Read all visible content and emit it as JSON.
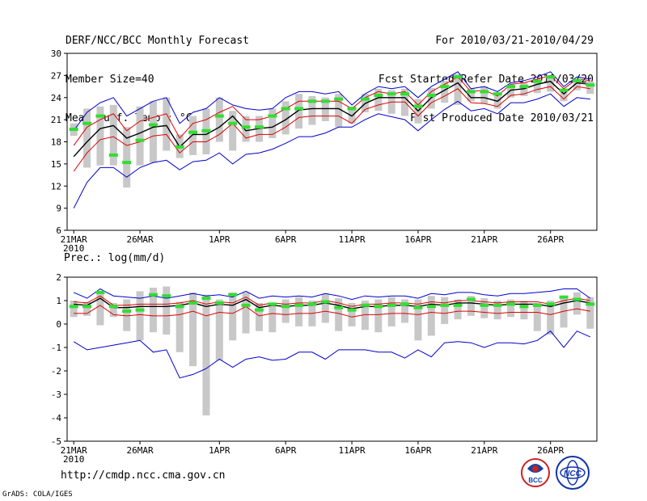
{
  "header": {
    "left": [
      "DERF/NCC/BCC Monthly Forecast",
      "Member Size=40",
      "Mean Surf. Temp.: °C"
    ],
    "right": [
      "For 2010/03/21-2010/04/29",
      "Fcst Started Refer Date 2010/03/20",
      "Fcst Produced Date 2010/03/21"
    ]
  },
  "footer": {
    "url": "http://cmdp.ncc.cma.gov.cn",
    "credit": "GrADS: COLA/IGES",
    "logo_bcc": "BCC",
    "logo_ncc": "NCC"
  },
  "colors": {
    "ensemble_mean": "#000000",
    "std_band": "#e00000",
    "extreme": "#0000cc",
    "analog": "#33dd33",
    "spread_bar": "#c8c8c8"
  },
  "chart_data": [
    {
      "type": "line",
      "title": "Mean Surf. Temp.: °C",
      "x_tick_labels": [
        "21MAR",
        "26MAR",
        "1APR",
        "6APR",
        "11APR",
        "16APR",
        "21APR",
        "26APR"
      ],
      "x_tick_days": [
        1,
        6,
        12,
        17,
        22,
        27,
        32,
        37
      ],
      "x_year_label": "2010",
      "x_range": [
        1,
        40
      ],
      "ylim": [
        6,
        30
      ],
      "y_ticks": [
        6,
        9,
        12,
        15,
        18,
        21,
        24,
        27,
        30
      ],
      "series": [
        {
          "name": "ensemble-mean",
          "values": [
            16,
            18,
            19.8,
            20.2,
            18.5,
            19.2,
            20,
            20.2,
            17.3,
            19,
            19,
            20,
            21.5,
            19.5,
            19.8,
            20,
            21,
            22.3,
            22.5,
            22.5,
            22.5,
            21.5,
            23.2,
            24,
            24,
            24,
            22.2,
            24,
            25,
            26,
            24,
            24,
            23.5,
            25,
            25.2,
            25.8,
            26.2,
            24.5,
            26,
            25.8
          ]
        },
        {
          "name": "mean-plus-std",
          "values": [
            17.5,
            20,
            21,
            21.8,
            19.5,
            20.8,
            21.3,
            21.8,
            18.5,
            20.5,
            21,
            22,
            22.8,
            21,
            21,
            21.5,
            22.5,
            23.5,
            23.5,
            23.5,
            23.5,
            22.5,
            24,
            24.8,
            24.5,
            24.8,
            23,
            24.8,
            25.8,
            26.8,
            24.8,
            25,
            24.2,
            25.8,
            26,
            26.5,
            27,
            25.2,
            26.5,
            26.3
          ]
        },
        {
          "name": "mean-minus-std",
          "values": [
            14,
            16.5,
            18.3,
            18.7,
            17.5,
            18,
            18.8,
            19,
            16.5,
            18,
            18,
            19,
            20.5,
            18.5,
            19,
            19,
            20,
            21.3,
            21.5,
            21.5,
            21.5,
            20.5,
            22.4,
            23,
            23.4,
            23.4,
            21.5,
            23.3,
            24.2,
            25.2,
            23.3,
            23.2,
            22.8,
            24.3,
            24.5,
            25.1,
            25.5,
            23.8,
            25.5,
            25.2
          ]
        },
        {
          "name": "ensemble-max",
          "values": [
            19.5,
            22,
            23.3,
            24,
            21.5,
            22.5,
            23.5,
            24,
            20.5,
            22,
            22.5,
            24,
            23,
            22.5,
            22.3,
            22.5,
            24,
            24.8,
            24.8,
            24.5,
            24.8,
            23,
            24.5,
            25.5,
            25.2,
            25.5,
            24,
            25.5,
            26.5,
            27.5,
            25.2,
            25.5,
            24.8,
            26,
            26.3,
            26.8,
            27.5,
            25.5,
            26.8,
            26.5
          ]
        },
        {
          "name": "ensemble-min",
          "values": [
            9,
            12.5,
            14.5,
            14.5,
            13.2,
            14.5,
            15.2,
            15.5,
            14.2,
            15.3,
            15.5,
            16.5,
            15,
            16.3,
            16.5,
            17,
            17.8,
            18.7,
            18.7,
            19.2,
            20,
            20,
            21,
            21.8,
            21.4,
            21,
            19.5,
            21,
            22.4,
            23.5,
            22.2,
            22.5,
            21.8,
            23.3,
            23.3,
            23.8,
            24.5,
            22.8,
            24,
            23.8
          ]
        },
        {
          "name": "analog-forecast",
          "values": [
            19.7,
            20.5,
            21.5,
            16.2,
            15.2,
            18.2,
            20.3,
            null,
            17.3,
            19.3,
            19.5,
            21.5,
            20.5,
            20,
            20,
            21.5,
            22.5,
            22.5,
            23.5,
            23.5,
            23.8,
            22.5,
            23.8,
            24.3,
            24.5,
            24.5,
            22.8,
            24.3,
            25.5,
            26.8,
            24.8,
            24.8,
            24.5,
            25.5,
            25.5,
            26.2,
            26.8,
            25,
            26.3,
            25.7
          ]
        }
      ],
      "spread_bars": {
        "low": [
          18.8,
          14.5,
          14.8,
          14.8,
          11.8,
          14.8,
          15.2,
          16.8,
          15.8,
          16.2,
          16.3,
          18,
          16.8,
          18,
          18,
          18.5,
          19,
          19.8,
          20.3,
          20.8,
          20,
          20.5,
          22,
          22.2,
          21.8,
          21.5,
          20.5,
          22.5,
          23.3,
          23,
          23.5,
          23.2,
          22.5,
          24,
          24.2,
          24.6,
          24.8,
          23.5,
          25,
          24.5
        ],
        "high": [
          20.5,
          22.5,
          22.8,
          23,
          20,
          22.8,
          23.5,
          24,
          19,
          21.5,
          22.5,
          24,
          22.2,
          21.5,
          21.5,
          22.5,
          23.5,
          24.5,
          24.2,
          24,
          24.5,
          22.8,
          24.5,
          25.2,
          25,
          25.2,
          23.8,
          25.3,
          26.2,
          27.2,
          25.2,
          25.5,
          24.5,
          25.8,
          26,
          26.5,
          27,
          25.2,
          26.5,
          26.2
        ]
      }
    },
    {
      "type": "line",
      "title": "Prec.: log(mm/d)",
      "x_tick_labels": [
        "21MAR",
        "26MAR",
        "1APR",
        "6APR",
        "11APR",
        "16APR",
        "21APR",
        "26APR"
      ],
      "x_tick_days": [
        1,
        6,
        12,
        17,
        22,
        27,
        32,
        37
      ],
      "x_year_label": "2010",
      "x_range": [
        1,
        40
      ],
      "ylim": [
        -5,
        2
      ],
      "y_ticks": [
        -5,
        -4,
        -3,
        -2,
        -1,
        0,
        1,
        2
      ],
      "series": [
        {
          "name": "ensemble-mean",
          "values": [
            0.85,
            0.8,
            1.1,
            0.7,
            0.7,
            0.75,
            0.75,
            0.75,
            0.8,
            0.9,
            0.75,
            0.85,
            0.8,
            1.05,
            0.7,
            0.8,
            0.75,
            0.8,
            0.8,
            0.9,
            0.8,
            0.65,
            0.75,
            0.75,
            0.8,
            0.8,
            0.75,
            0.85,
            0.8,
            0.9,
            0.9,
            0.85,
            0.8,
            0.85,
            0.85,
            0.85,
            0.75,
            0.9,
            1,
            0.9
          ]
        },
        {
          "name": "mean-plus-std",
          "values": [
            0.95,
            0.9,
            1.2,
            0.8,
            0.8,
            0.85,
            0.85,
            0.85,
            0.9,
            1.0,
            0.85,
            0.95,
            0.9,
            1.15,
            0.8,
            0.9,
            0.85,
            0.9,
            0.9,
            1.0,
            0.9,
            0.75,
            0.85,
            0.85,
            0.9,
            0.9,
            0.85,
            0.95,
            0.9,
            1.0,
            1.0,
            0.95,
            0.9,
            0.95,
            0.95,
            0.95,
            0.85,
            1.0,
            1.1,
            1.0
          ]
        },
        {
          "name": "mean-minus-std",
          "values": [
            0.45,
            0.45,
            0.8,
            0.4,
            0.35,
            0.4,
            0.35,
            0.35,
            0.4,
            0.55,
            0.35,
            0.5,
            0.45,
            0.75,
            0.35,
            0.45,
            0.4,
            0.45,
            0.45,
            0.55,
            0.45,
            0.3,
            0.4,
            0.4,
            0.45,
            0.45,
            0.4,
            0.5,
            0.45,
            0.55,
            0.55,
            0.5,
            0.45,
            0.5,
            0.5,
            0.5,
            0.4,
            0.55,
            0.65,
            0.55
          ]
        },
        {
          "name": "ensemble-max",
          "values": [
            1.35,
            1.1,
            1.5,
            1.2,
            1.15,
            1.1,
            1.2,
            1.1,
            1.2,
            1.3,
            1.2,
            1.25,
            1.15,
            1.4,
            1.1,
            1.2,
            1.15,
            1.2,
            1.15,
            1.3,
            1.2,
            1.05,
            1.2,
            1.15,
            1.2,
            1.2,
            1.1,
            1.3,
            1.25,
            1.35,
            1.35,
            1.25,
            1.2,
            1.3,
            1.3,
            1.35,
            1.4,
            1.5,
            1.5,
            1.1
          ]
        },
        {
          "name": "ensemble-min",
          "values": [
            -0.75,
            -1.1,
            -1.0,
            -0.9,
            -0.8,
            -0.7,
            -1.2,
            -1.1,
            -2.3,
            -2.15,
            -1.9,
            -1.5,
            -1.85,
            -1.5,
            -1.4,
            -1.55,
            -1.5,
            -1.2,
            -1.2,
            -1.5,
            -1.1,
            -1.1,
            -1.1,
            -1.2,
            -1.2,
            -1.45,
            -1.1,
            -1.4,
            -0.8,
            -0.75,
            -0.8,
            -1.0,
            -0.8,
            -0.8,
            -0.85,
            -0.7,
            -0.3,
            -1.0,
            -0.3,
            -0.55
          ]
        },
        {
          "name": "analog-forecast",
          "values": [
            0.75,
            0.75,
            1.35,
            0.75,
            0.55,
            0.6,
            1.25,
            1.2,
            0.75,
            0.9,
            1.1,
            0.9,
            1.25,
            0.8,
            0.6,
            0.85,
            0.75,
            0.8,
            0.85,
            0.95,
            0.7,
            0.6,
            0.8,
            0.75,
            0.8,
            0.85,
            0.7,
            0.75,
            0.8,
            0.8,
            1.05,
            0.8,
            0.8,
            0.85,
            0.75,
            0.8,
            0.85,
            1.15,
            1.05,
            0.85
          ]
        }
      ],
      "spread_bars": {
        "low": [
          0.3,
          0.35,
          -0.05,
          0.3,
          -0.3,
          -0.7,
          -0.35,
          -0.45,
          -1.2,
          -1.8,
          -3.9,
          -1.55,
          -0.7,
          -0.4,
          -0.3,
          -0.35,
          0.05,
          -0.1,
          -0.1,
          0.05,
          -0.3,
          -0.1,
          -0.25,
          -0.35,
          -0.1,
          0.05,
          -0.7,
          -0.5,
          0.0,
          0.2,
          0.35,
          0.25,
          0.2,
          0.3,
          0.2,
          -0.3,
          -0.45,
          -0.15,
          0.4,
          -0.2
        ],
        "high": [
          1.0,
          0.95,
          1.35,
          0.9,
          1.05,
          1.4,
          1.55,
          1.6,
          0.95,
          1.35,
          1.25,
          1.05,
          1.35,
          1.35,
          0.9,
          0.85,
          1.05,
          1.15,
          1.0,
          1.3,
          1.1,
          0.9,
          1.0,
          1.05,
          1.15,
          1.05,
          1.05,
          1.2,
          1.15,
          1.05,
          1.2,
          1.1,
          1.0,
          1.05,
          1.0,
          0.9,
          1.0,
          1.2,
          1.35,
          1.15
        ]
      }
    }
  ]
}
